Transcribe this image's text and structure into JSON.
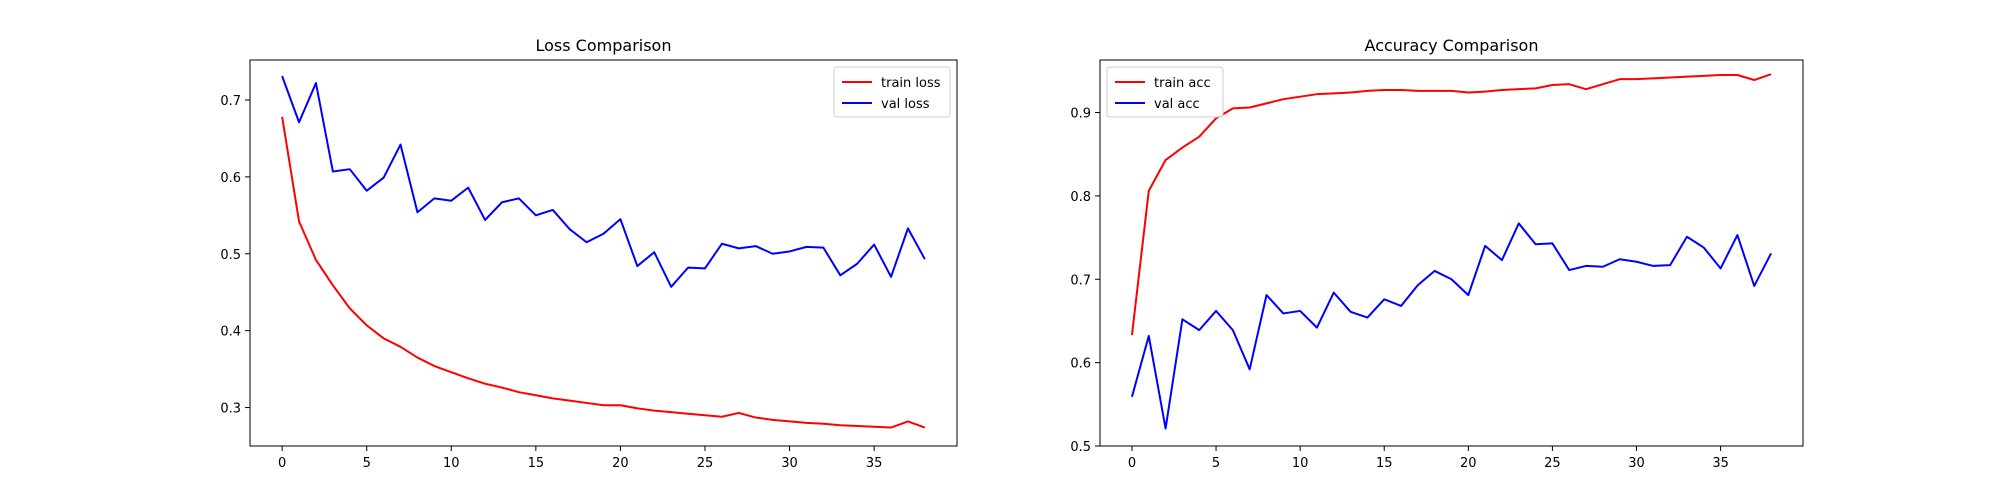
{
  "chart_data": [
    {
      "type": "line",
      "title": "Loss Comparison",
      "xlabel": "",
      "ylabel": "",
      "xlim": [
        -1.9,
        39.9
      ],
      "ylim": [
        0.25,
        0.752
      ],
      "xticks": [
        0,
        5,
        10,
        15,
        20,
        25,
        30,
        35
      ],
      "yticks": [
        0.3,
        0.4,
        0.5,
        0.6,
        0.7
      ],
      "ytick_labels": [
        "0.3",
        "0.4",
        "0.5",
        "0.6",
        "0.7"
      ],
      "grid": false,
      "legend_position": "upper right",
      "x": [
        0,
        1,
        2,
        3,
        4,
        5,
        6,
        7,
        8,
        9,
        10,
        11,
        12,
        13,
        14,
        15,
        16,
        17,
        18,
        19,
        20,
        21,
        22,
        23,
        24,
        25,
        26,
        27,
        28,
        29,
        30,
        31,
        32,
        33,
        34,
        35,
        36,
        37,
        38
      ],
      "series": [
        {
          "name": "train loss",
          "color": "#ff0000",
          "values": [
            0.678,
            0.542,
            0.492,
            0.459,
            0.429,
            0.407,
            0.39,
            0.379,
            0.365,
            0.354,
            0.346,
            0.338,
            0.331,
            0.326,
            0.32,
            0.316,
            0.312,
            0.309,
            0.306,
            0.303,
            0.303,
            0.299,
            0.296,
            0.294,
            0.292,
            0.29,
            0.288,
            0.293,
            0.287,
            0.284,
            0.282,
            0.28,
            0.279,
            0.277,
            0.276,
            0.275,
            0.274,
            0.282,
            0.274
          ]
        },
        {
          "name": "val loss",
          "color": "#0000ff",
          "values": [
            0.731,
            0.671,
            0.722,
            0.607,
            0.61,
            0.582,
            0.599,
            0.642,
            0.554,
            0.572,
            0.569,
            0.586,
            0.544,
            0.567,
            0.572,
            0.55,
            0.557,
            0.532,
            0.515,
            0.526,
            0.545,
            0.484,
            0.502,
            0.457,
            0.482,
            0.481,
            0.513,
            0.507,
            0.51,
            0.5,
            0.503,
            0.509,
            0.508,
            0.472,
            0.487,
            0.512,
            0.47,
            0.533,
            0.493
          ]
        }
      ]
    },
    {
      "type": "line",
      "title": "Accuracy Comparison",
      "xlabel": "",
      "ylabel": "",
      "xlim": [
        -1.9,
        39.9
      ],
      "ylim": [
        0.5,
        0.963
      ],
      "xticks": [
        0,
        5,
        10,
        15,
        20,
        25,
        30,
        35
      ],
      "yticks": [
        0.5,
        0.6,
        0.7,
        0.8,
        0.9
      ],
      "ytick_labels": [
        "0.5",
        "0.6",
        "0.7",
        "0.8",
        "0.9"
      ],
      "grid": false,
      "legend_position": "upper left",
      "x": [
        0,
        1,
        2,
        3,
        4,
        5,
        6,
        7,
        8,
        9,
        10,
        11,
        12,
        13,
        14,
        15,
        16,
        17,
        18,
        19,
        20,
        21,
        22,
        23,
        24,
        25,
        26,
        27,
        28,
        29,
        30,
        31,
        32,
        33,
        34,
        35,
        36,
        37,
        38
      ],
      "series": [
        {
          "name": "train acc",
          "color": "#ff0000",
          "values": [
            0.633,
            0.806,
            0.843,
            0.858,
            0.871,
            0.893,
            0.905,
            0.906,
            0.911,
            0.916,
            0.919,
            0.922,
            0.923,
            0.924,
            0.926,
            0.927,
            0.927,
            0.926,
            0.926,
            0.926,
            0.924,
            0.925,
            0.927,
            0.928,
            0.929,
            0.933,
            0.934,
            0.928,
            0.934,
            0.94,
            0.94,
            0.941,
            0.942,
            0.943,
            0.944,
            0.945,
            0.945,
            0.939,
            0.946
          ]
        },
        {
          "name": "val acc",
          "color": "#0000ff",
          "values": [
            0.559,
            0.632,
            0.521,
            0.652,
            0.639,
            0.662,
            0.639,
            0.592,
            0.681,
            0.659,
            0.662,
            0.642,
            0.684,
            0.661,
            0.654,
            0.676,
            0.668,
            0.693,
            0.71,
            0.7,
            0.681,
            0.74,
            0.723,
            0.767,
            0.742,
            0.743,
            0.711,
            0.716,
            0.715,
            0.724,
            0.721,
            0.716,
            0.717,
            0.751,
            0.738,
            0.713,
            0.753,
            0.692,
            0.731
          ]
        }
      ]
    }
  ]
}
